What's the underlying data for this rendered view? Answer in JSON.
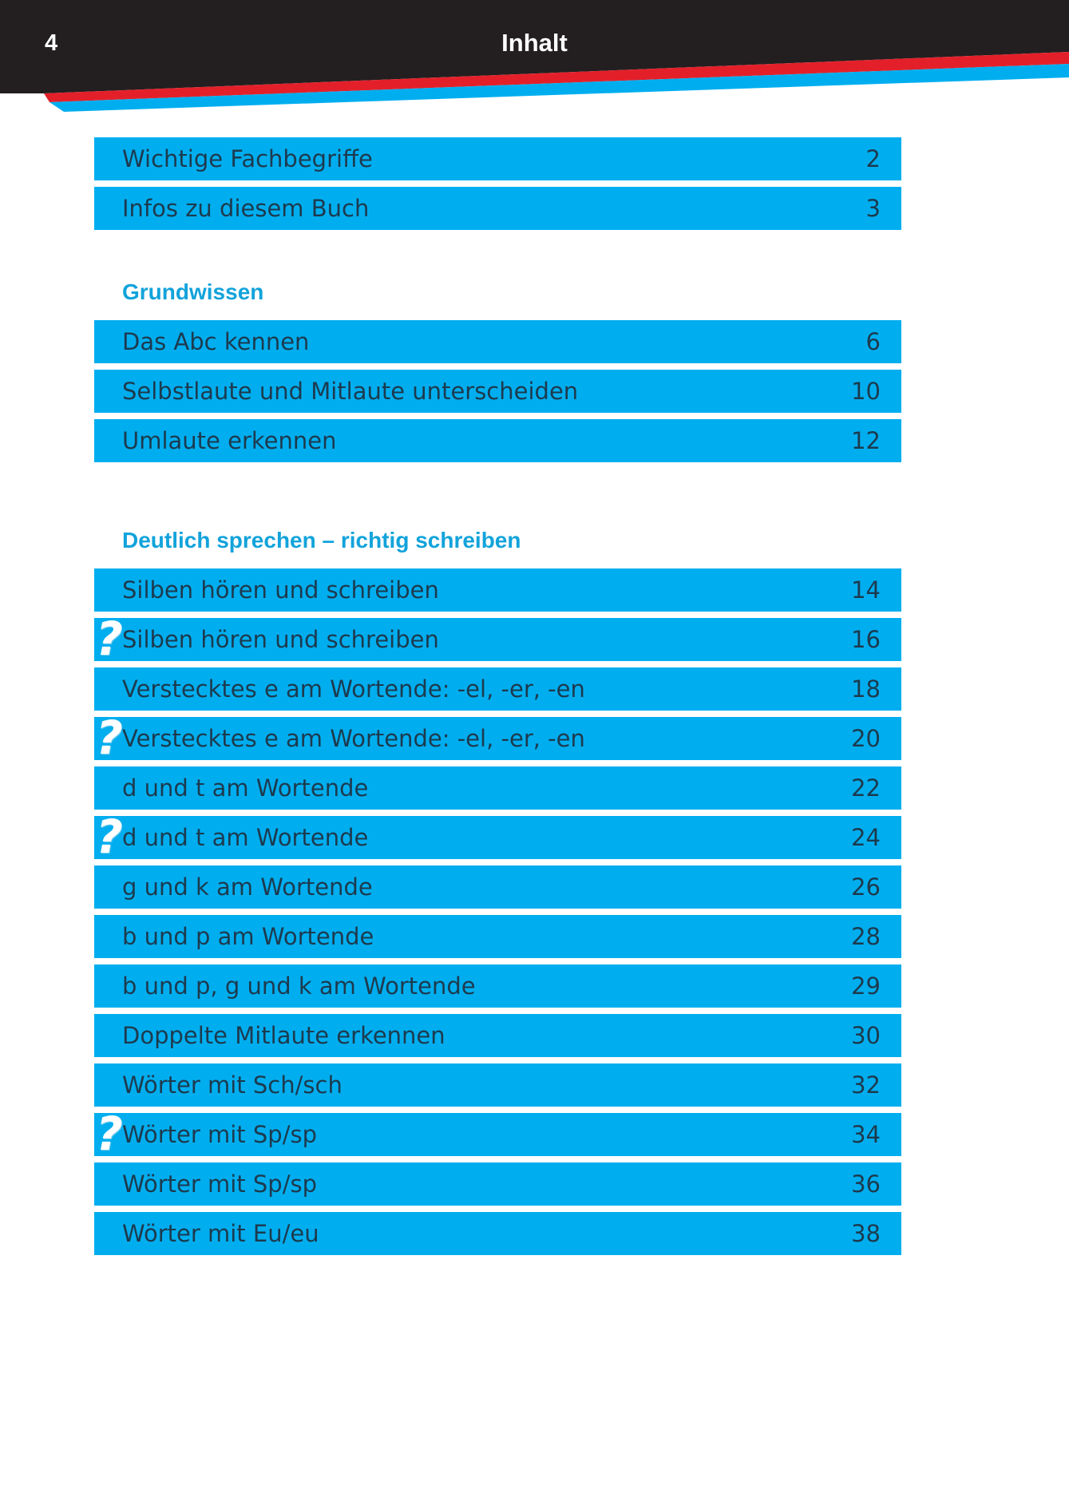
{
  "header": {
    "page_number": "4",
    "title": "Inhalt"
  },
  "colors": {
    "header_black": "#231f20",
    "stripe_red": "#e3202a",
    "accent_blue": "#00aeef",
    "heading_blue": "#12a3db",
    "text": "#1d3a4e"
  },
  "intro": [
    {
      "label": "Wichtige Fachbegriffe",
      "page": "2"
    },
    {
      "label": "Infos zu diesem Buch",
      "page": "3"
    }
  ],
  "sections": [
    {
      "title": "Grundwissen",
      "items": [
        {
          "label": "Das Abc kennen",
          "page": "6"
        },
        {
          "label": "Selbstlaute und Mitlaute unterscheiden",
          "page": "10"
        },
        {
          "label": "Umlaute erkennen",
          "page": "12"
        }
      ]
    },
    {
      "title": "Deutlich sprechen – richtig schreiben",
      "items": [
        {
          "label": "Silben hören und schreiben",
          "page": "14"
        },
        {
          "label": "Silben hören und schreiben",
          "page": "16",
          "icon": "question-mark-icon"
        },
        {
          "label": "Verstecktes e am Wortende: -el, -er, -en",
          "page": "18"
        },
        {
          "label": "Verstecktes e am Wortende: -el, -er, -en",
          "page": "20",
          "icon": "question-mark-icon"
        },
        {
          "label": "d und t am Wortende",
          "page": "22"
        },
        {
          "label": "d und t am Wortende",
          "page": "24",
          "icon": "question-mark-icon"
        },
        {
          "label": "g und k am Wortende",
          "page": "26"
        },
        {
          "label": "b und p am Wortende",
          "page": "28"
        },
        {
          "label": "b und p, g und k am Wortende",
          "page": "29"
        },
        {
          "label": "Doppelte Mitlaute erkennen",
          "page": "30"
        },
        {
          "label": "Wörter mit Sch/sch",
          "page": "32"
        },
        {
          "label": "Wörter mit Sp/sp",
          "page": "34",
          "icon": "question-mark-icon"
        },
        {
          "label": "Wörter mit Sp/sp",
          "page": "36"
        },
        {
          "label": "Wörter mit Eu/eu",
          "page": "38"
        }
      ]
    }
  ]
}
